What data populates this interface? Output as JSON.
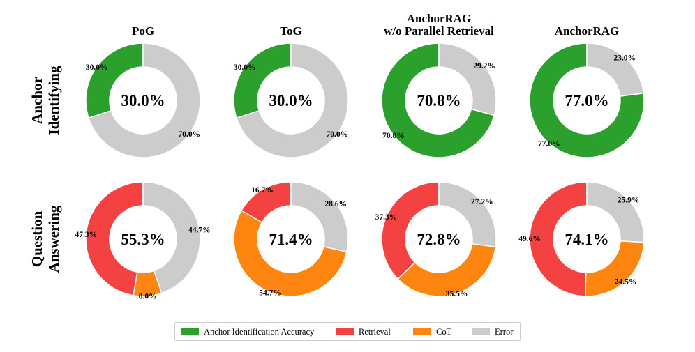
{
  "chart_data": {
    "type": "donut-grid",
    "columns": [
      "PoG",
      "ToG",
      "AnchorRAG\nw/o Parallel Retrieval",
      "AnchorRAG"
    ],
    "rows": [
      "Anchor\nIdentifying",
      "Question\nAnswering"
    ],
    "colors": {
      "Anchor Identification Accuracy": "#2ca02c",
      "Retrieval": "#f44242",
      "CoT": "#fd8510",
      "Error": "#cccccc"
    },
    "legend": {
      "position": "bottom-center",
      "entries": [
        "Anchor Identification Accuracy",
        "Retrieval",
        "CoT",
        "Error"
      ]
    },
    "charts": [
      {
        "row": 0,
        "col": 0,
        "center_label": "30.0%",
        "slices": [
          {
            "category": "Anchor Identification Accuracy",
            "value": 30.0,
            "label": "30.0%"
          },
          {
            "category": "Error",
            "value": 70.0,
            "label": "70.0%"
          }
        ]
      },
      {
        "row": 0,
        "col": 1,
        "center_label": "30.0%",
        "slices": [
          {
            "category": "Anchor Identification Accuracy",
            "value": 30.0,
            "label": "30.0%"
          },
          {
            "category": "Error",
            "value": 70.0,
            "label": "70.0%"
          }
        ]
      },
      {
        "row": 0,
        "col": 2,
        "center_label": "70.8%",
        "slices": [
          {
            "category": "Anchor Identification Accuracy",
            "value": 70.8,
            "label": "70.8%"
          },
          {
            "category": "Error",
            "value": 29.2,
            "label": "29.2%"
          }
        ]
      },
      {
        "row": 0,
        "col": 3,
        "center_label": "77.0%",
        "slices": [
          {
            "category": "Anchor Identification Accuracy",
            "value": 77.0,
            "label": "77.0%"
          },
          {
            "category": "Error",
            "value": 23.0,
            "label": "23.0%"
          }
        ]
      },
      {
        "row": 1,
        "col": 0,
        "center_label": "55.3%",
        "slices": [
          {
            "category": "Retrieval",
            "value": 47.3,
            "label": "47.3%"
          },
          {
            "category": "CoT",
            "value": 8.0,
            "label": "8.0%"
          },
          {
            "category": "Error",
            "value": 44.7,
            "label": "44.7%"
          }
        ]
      },
      {
        "row": 1,
        "col": 1,
        "center_label": "71.4%",
        "slices": [
          {
            "category": "Retrieval",
            "value": 16.7,
            "label": "16.7%"
          },
          {
            "category": "CoT",
            "value": 54.7,
            "label": "54.7%"
          },
          {
            "category": "Error",
            "value": 28.6,
            "label": "28.6%"
          }
        ]
      },
      {
        "row": 1,
        "col": 2,
        "center_label": "72.8%",
        "slices": [
          {
            "category": "Retrieval",
            "value": 37.3,
            "label": "37.3%"
          },
          {
            "category": "CoT",
            "value": 35.5,
            "label": "35.5%"
          },
          {
            "category": "Error",
            "value": 27.2,
            "label": "27.2%"
          }
        ]
      },
      {
        "row": 1,
        "col": 3,
        "center_label": "74.1%",
        "slices": [
          {
            "category": "Retrieval",
            "value": 49.6,
            "label": "49.6%"
          },
          {
            "category": "CoT",
            "value": 24.5,
            "label": "24.5%"
          },
          {
            "category": "Error",
            "value": 25.9,
            "label": "25.9%"
          }
        ]
      }
    ]
  }
}
